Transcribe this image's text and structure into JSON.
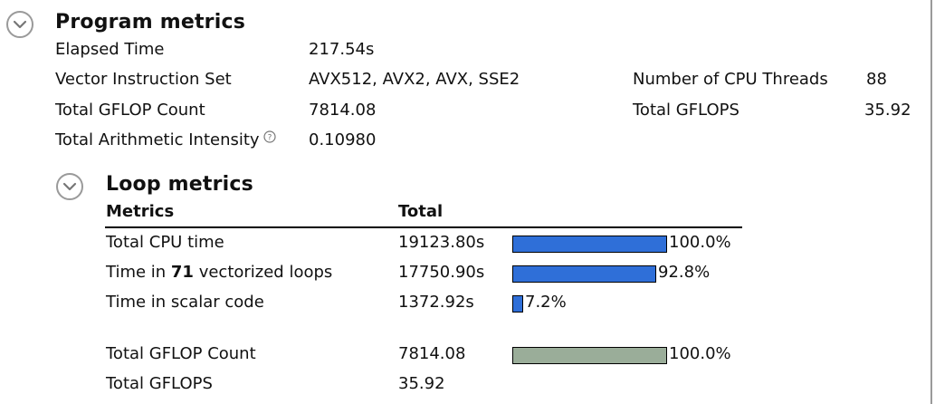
{
  "program": {
    "title": "Program metrics",
    "rows": [
      {
        "label": "Elapsed Time",
        "value": "217.54s"
      },
      {
        "label": "Vector Instruction Set",
        "value": "AVX512, AVX2, AVX, SSE2",
        "label2": "Number of CPU Threads",
        "value2": "88"
      },
      {
        "label": "Total GFLOP Count",
        "value": "7814.08",
        "label2": "Total GFLOPS",
        "value2": "35.92"
      },
      {
        "label": "Total Arithmetic Intensity",
        "value": "0.10980"
      }
    ]
  },
  "loop": {
    "title": "Loop metrics",
    "col_metrics": "Metrics",
    "col_total": "Total",
    "rows": [
      {
        "label": "Total CPU time",
        "value": "19123.80s",
        "pct_label": "100.0%",
        "pct": 100.0,
        "color": "#2f6fd8"
      },
      {
        "label_pre": "Time in ",
        "label_bold": "71",
        "label_post": " vectorized loops",
        "value": "17750.90s",
        "pct_label": "92.8%",
        "pct": 92.8,
        "color": "#2f6fd8"
      },
      {
        "label": "Time in scalar code",
        "value": "1372.92s",
        "pct_label": "7.2%",
        "pct": 7.2,
        "color": "#2f6fd8"
      },
      {
        "label": "Total GFLOP Count",
        "value": "7814.08",
        "pct_label": "100.0%",
        "pct": 100.0,
        "color": "#9aad99"
      },
      {
        "label": "Total GFLOPS",
        "value": "35.92"
      }
    ]
  },
  "icons": {
    "collapse": "chevron-down-icon",
    "help": "help-circle-icon"
  }
}
